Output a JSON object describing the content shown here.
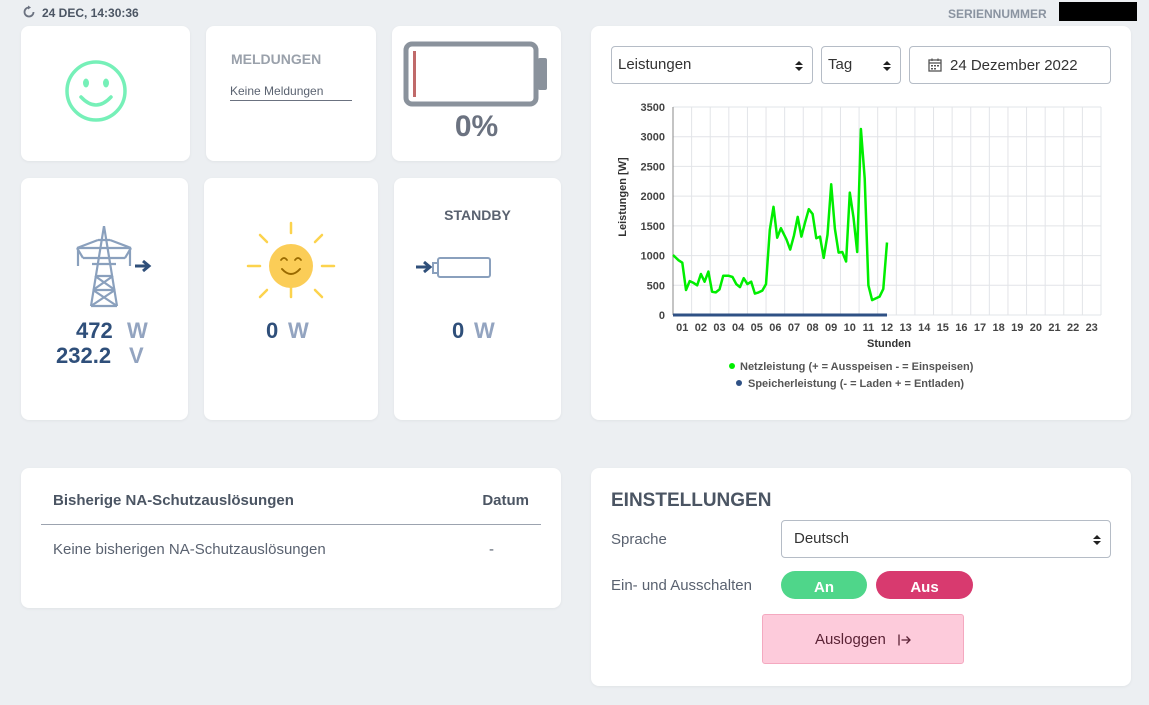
{
  "header": {
    "datetime": "24 DEC, 14:30:36",
    "serial_label": "SERIENNUMMER"
  },
  "status": {
    "icon": "smiley-icon"
  },
  "messages": {
    "title": "MELDUNGEN",
    "text": "Keine Meldungen"
  },
  "battery": {
    "percent_text": "0%",
    "level": 0
  },
  "grid": {
    "power_value": "472",
    "power_unit": "W",
    "voltage_value": "232.2",
    "voltage_unit": "V"
  },
  "solar": {
    "power_value": "0",
    "power_unit": "W"
  },
  "storage": {
    "status": "STANDBY",
    "power_value": "0",
    "power_unit": "W"
  },
  "controls": {
    "metric_select": "Leistungen",
    "period_select": "Tag",
    "date": "24 Dezember 2022"
  },
  "chart_data": {
    "type": "line",
    "xlabel": "Stunden",
    "ylabel": "Leistungen [W]",
    "ylim": [
      0,
      3500
    ],
    "yticks": [
      0,
      500,
      1000,
      1500,
      2000,
      2500,
      3000,
      3500
    ],
    "xlim": [
      0,
      23
    ],
    "xticks": [
      "01",
      "02",
      "03",
      "04",
      "05",
      "06",
      "07",
      "08",
      "09",
      "10",
      "11",
      "12",
      "13",
      "14",
      "15",
      "16",
      "17",
      "18",
      "19",
      "20",
      "21",
      "22",
      "23"
    ],
    "grid": true,
    "legend_position": "bottom",
    "series": [
      {
        "name": "Netzleistung (+ = Ausspeisen - = Einspeisen)",
        "color": "#00ee00",
        "points": [
          [
            0,
            1010
          ],
          [
            0.3,
            920
          ],
          [
            0.5,
            880
          ],
          [
            0.7,
            420
          ],
          [
            0.9,
            570
          ],
          [
            1.1,
            540
          ],
          [
            1.3,
            500
          ],
          [
            1.5,
            690
          ],
          [
            1.7,
            560
          ],
          [
            1.9,
            730
          ],
          [
            2.1,
            390
          ],
          [
            2.3,
            380
          ],
          [
            2.5,
            430
          ],
          [
            2.7,
            660
          ],
          [
            3.0,
            660
          ],
          [
            3.2,
            640
          ],
          [
            3.4,
            520
          ],
          [
            3.6,
            470
          ],
          [
            3.8,
            620
          ],
          [
            4.0,
            520
          ],
          [
            4.2,
            560
          ],
          [
            4.4,
            360
          ],
          [
            4.6,
            380
          ],
          [
            4.8,
            410
          ],
          [
            5.0,
            520
          ],
          [
            5.2,
            1430
          ],
          [
            5.4,
            1820
          ],
          [
            5.6,
            1300
          ],
          [
            5.8,
            1460
          ],
          [
            6.1,
            1270
          ],
          [
            6.3,
            1100
          ],
          [
            6.5,
            1340
          ],
          [
            6.7,
            1650
          ],
          [
            6.9,
            1320
          ],
          [
            7.1,
            1560
          ],
          [
            7.3,
            1780
          ],
          [
            7.5,
            1700
          ],
          [
            7.7,
            1290
          ],
          [
            7.9,
            1320
          ],
          [
            8.1,
            960
          ],
          [
            8.3,
            1350
          ],
          [
            8.5,
            2200
          ],
          [
            8.7,
            1450
          ],
          [
            8.9,
            1050
          ],
          [
            9.1,
            1060
          ],
          [
            9.3,
            900
          ],
          [
            9.5,
            2060
          ],
          [
            9.7,
            1640
          ],
          [
            9.9,
            1060
          ],
          [
            10.1,
            3130
          ],
          [
            10.3,
            2300
          ],
          [
            10.5,
            500
          ],
          [
            10.7,
            250
          ],
          [
            10.9,
            280
          ],
          [
            11.1,
            310
          ],
          [
            11.3,
            440
          ],
          [
            11.5,
            1220
          ]
        ]
      },
      {
        "name": "Speicherleistung (- = Laden  + = Entladen)",
        "color": "#2f5185",
        "points": [
          [
            0,
            0
          ],
          [
            11.5,
            0
          ]
        ]
      }
    ]
  },
  "table": {
    "col_event": "Bisherige NA-Schutzauslösungen",
    "col_date": "Datum",
    "empty_text": "Keine bisherigen NA-Schutzauslösungen",
    "empty_date": "-"
  },
  "settings": {
    "title": "EINSTELLUNGEN",
    "language_label": "Sprache",
    "language_value": "Deutsch",
    "power_label": "Ein- und Ausschalten",
    "on_label": "An",
    "off_label": "Aus",
    "logout_label": "Ausloggen",
    "logout_icon": "logout-icon"
  }
}
